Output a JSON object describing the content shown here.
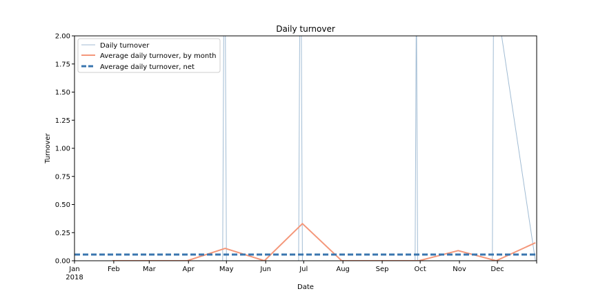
{
  "chart_data": {
    "type": "line",
    "title": "Daily turnover",
    "xlabel": "Date",
    "ylabel": "Turnover",
    "ylim": [
      0,
      2.0
    ],
    "xlim": [
      "2018-01-01",
      "2019-01-01"
    ],
    "grid": false,
    "legend_position": "upper-left",
    "y_ticks": [
      "0.00",
      "0.25",
      "0.50",
      "0.75",
      "1.00",
      "1.25",
      "1.50",
      "1.75",
      "2.00"
    ],
    "x_ticks": [
      {
        "date": "2018-01-01",
        "label": "Jan",
        "sublabel": "2018"
      },
      {
        "date": "2018-02-01",
        "label": "Feb"
      },
      {
        "date": "2018-03-01",
        "label": "Mar"
      },
      {
        "date": "2018-04-01",
        "label": "Apr"
      },
      {
        "date": "2018-05-01",
        "label": "May"
      },
      {
        "date": "2018-06-01",
        "label": "Jun"
      },
      {
        "date": "2018-07-01",
        "label": "Jul"
      },
      {
        "date": "2018-08-01",
        "label": "Aug"
      },
      {
        "date": "2018-09-01",
        "label": "Sep"
      },
      {
        "date": "2018-10-01",
        "label": "Oct"
      },
      {
        "date": "2018-11-01",
        "label": "Nov"
      },
      {
        "date": "2018-12-01",
        "label": "Dec"
      },
      {
        "date": "2019-01-01",
        "label": ""
      }
    ],
    "series": [
      {
        "name": "Daily turnover",
        "style": "thin",
        "color": "#a0bbd3",
        "x": [
          "2018-01-01",
          "2018-04-28",
          "2018-04-29",
          "2018-04-30",
          "2018-05-01",
          "2018-06-27",
          "2018-06-28",
          "2018-06-29",
          "2018-06-30",
          "2018-09-27",
          "2018-09-28",
          "2018-09-29",
          "2018-11-27",
          "2018-11-28",
          "2018-11-29",
          "2018-12-31"
        ],
        "values": [
          0,
          0,
          2.4,
          2.4,
          0,
          0,
          2.4,
          2.4,
          0,
          0,
          2.4,
          0,
          0,
          2.4,
          2.4,
          0
        ]
      },
      {
        "name": "Average daily turnover, by month",
        "style": "solid",
        "color": "#f4977a",
        "x": [
          "2018-01-31",
          "2018-02-28",
          "2018-03-31",
          "2018-04-30",
          "2018-05-31",
          "2018-06-30",
          "2018-07-31",
          "2018-08-31",
          "2018-09-30",
          "2018-10-31",
          "2018-11-30",
          "2018-12-31"
        ],
        "values": [
          0,
          0,
          0,
          0.11,
          0,
          0.33,
          0,
          0,
          0,
          0.09,
          0,
          0.16
        ]
      },
      {
        "name": "Average daily turnover, net",
        "style": "dashed",
        "color": "#3a76af",
        "x": [
          "2018-01-01",
          "2019-01-01"
        ],
        "values": [
          0.055,
          0.055
        ]
      }
    ]
  }
}
